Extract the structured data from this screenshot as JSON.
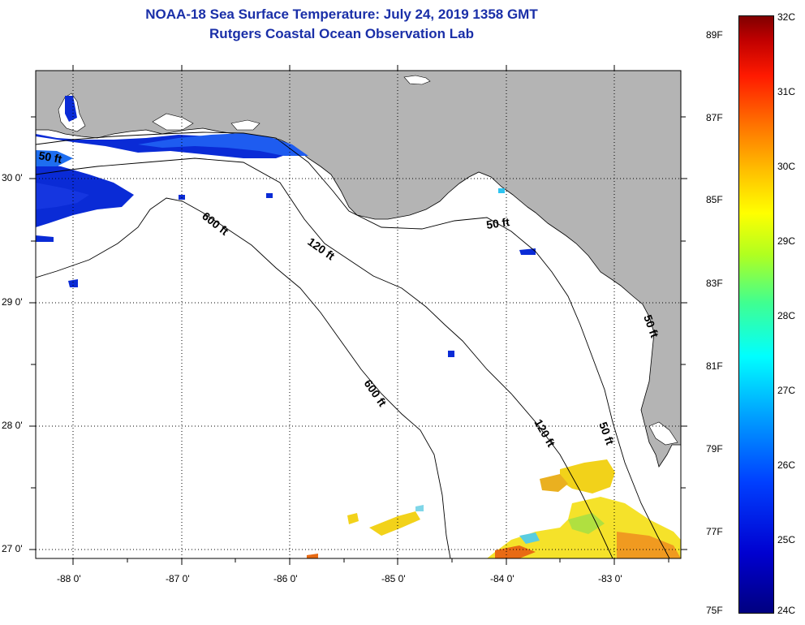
{
  "title": {
    "line1": "NOAA-18 Sea Surface Temperature:  July 24, 2019 1358 GMT",
    "line2": "Rutgers Coastal Ocean Observation Lab"
  },
  "map": {
    "lat_labels": [
      "30 0'",
      "29 0'",
      "28 0'",
      "27 0'"
    ],
    "lon_labels": [
      "-88 0'",
      "-87 0'",
      "-86 0'",
      "-85 0'",
      "-84 0'",
      "-83 0'"
    ],
    "contour_labels": [
      "50 ft",
      "600 ft",
      "120 ft",
      "50 ft",
      "50 ft",
      "600 ft",
      "120 ft",
      "50 ft"
    ],
    "colors": {
      "land": "#b4b4b4",
      "ocean": "#ffffff",
      "grid": "#000000"
    }
  },
  "colorbar": {
    "fahrenheit_labels": [
      "89F",
      "87F",
      "85F",
      "83F",
      "81F",
      "79F",
      "77F",
      "75F"
    ],
    "celsius_labels": [
      "32C",
      "31C",
      "30C",
      "29C",
      "28C",
      "27C",
      "26C",
      "25C",
      "24C"
    ]
  }
}
